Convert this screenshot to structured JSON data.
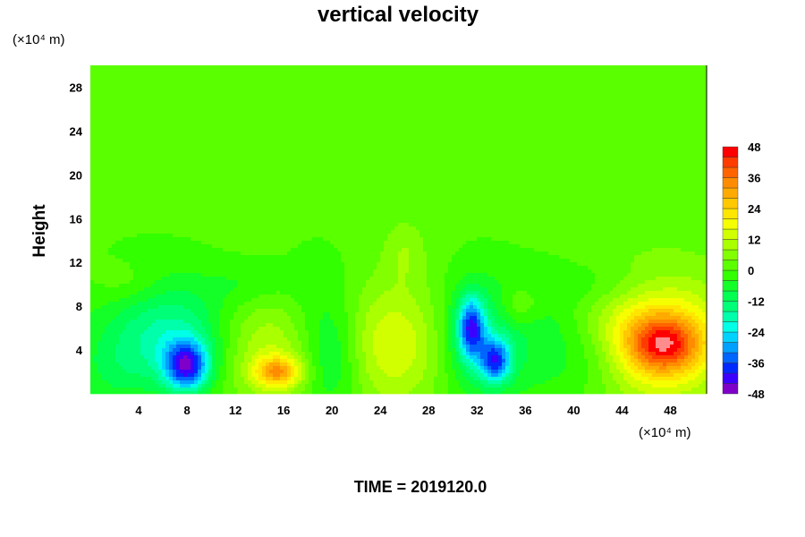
{
  "chart_data": {
    "type": "heatmap",
    "title": "vertical velocity",
    "ylabel": "Height",
    "xlabel": "",
    "x_unit": "(×10⁴ m)",
    "y_unit": "(×10⁴ m)",
    "footer": "TIME = 2019120.0",
    "xlim": [
      0,
      51
    ],
    "ylim": [
      0,
      30
    ],
    "x_ticks": [
      4,
      8,
      12,
      16,
      20,
      24,
      28,
      32,
      36,
      40,
      44,
      48
    ],
    "y_ticks": [
      4,
      8,
      12,
      16,
      20,
      24,
      28
    ],
    "x_tick_labels": [
      "4",
      "8",
      "12",
      "16",
      "20",
      "24",
      "28",
      "32",
      "36",
      "40",
      "44",
      "48"
    ],
    "y_tick_labels": [
      "4",
      "8",
      "12",
      "16",
      "20",
      "24",
      "28"
    ],
    "colorbar": {
      "min": -48,
      "max": 48,
      "step": 4,
      "ticks": [
        48,
        36,
        24,
        12,
        0,
        -12,
        -24,
        -36,
        -48
      ],
      "tick_labels": [
        "48",
        "36",
        "24",
        "12",
        "0",
        "-12",
        "-24",
        "-36",
        "-48"
      ],
      "colors": [
        "#7f00c8",
        "#3c00ff",
        "#0028ff",
        "#0064ff",
        "#00a0ff",
        "#00d2ff",
        "#00ffe6",
        "#00ffaa",
        "#00ff78",
        "#00ff50",
        "#14ff28",
        "#32ff00",
        "#5aff00",
        "#82ff00",
        "#aaff00",
        "#d2ff00",
        "#f5ff00",
        "#ffe600",
        "#ffc800",
        "#ffaa00",
        "#ff8c00",
        "#ff6400",
        "#ff3c00",
        "#ff0000",
        "#ff8c8c"
      ]
    },
    "background_value": 1,
    "field": [
      {
        "x": 8,
        "y": 2.5,
        "amplitude": -36,
        "sx": 1.3,
        "sy": 1.6
      },
      {
        "x": 7.5,
        "y": 5,
        "amplitude": -10,
        "sx": 3,
        "sy": 3
      },
      {
        "x": 5,
        "y": 6,
        "amplitude": -10,
        "sx": 4,
        "sy": 4
      },
      {
        "x": 2,
        "y": 2,
        "amplitude": -6,
        "sx": 2.5,
        "sy": 2.5
      },
      {
        "x": 15.5,
        "y": 2,
        "amplitude": 24,
        "sx": 1.4,
        "sy": 1.0
      },
      {
        "x": 15,
        "y": 4,
        "amplitude": 12,
        "sx": 3.2,
        "sy": 3.5
      },
      {
        "x": 20,
        "y": 3,
        "amplitude": -12,
        "sx": 1.8,
        "sy": 3.5
      },
      {
        "x": 19,
        "y": 7,
        "amplitude": -6,
        "sx": 2.5,
        "sy": 4
      },
      {
        "x": 25,
        "y": 4.5,
        "amplitude": 15,
        "sx": 3.5,
        "sy": 4
      },
      {
        "x": 31.5,
        "y": 6,
        "amplitude": -32,
        "sx": 0.8,
        "sy": 2
      },
      {
        "x": 33.5,
        "y": 3,
        "amplitude": -30,
        "sx": 0.9,
        "sy": 1.4
      },
      {
        "x": 32,
        "y": 5,
        "amplitude": -14,
        "sx": 2.5,
        "sy": 4
      },
      {
        "x": 38,
        "y": 5,
        "amplitude": -8,
        "sx": 3,
        "sy": 4
      },
      {
        "x": 35.5,
        "y": 8,
        "amplitude": 8,
        "sx": 1.2,
        "sy": 1.3
      },
      {
        "x": 42,
        "y": 3,
        "amplitude": -6,
        "sx": 2.5,
        "sy": 2.5
      },
      {
        "x": 47.5,
        "y": 4.5,
        "amplitude": 26,
        "sx": 2.1,
        "sy": 1.8
      },
      {
        "x": 46.5,
        "y": 5,
        "amplitude": 16,
        "sx": 4,
        "sy": 3.6
      },
      {
        "x": 47.5,
        "y": 5,
        "amplitude": 8,
        "sx": 5,
        "sy": 5
      },
      {
        "x": 26,
        "y": 13,
        "amplitude": 6,
        "sx": 1.2,
        "sy": 2
      },
      {
        "x": 13,
        "y": 10,
        "amplitude": -5,
        "sx": 2.5,
        "sy": 1.5
      },
      {
        "x": 43,
        "y": 10,
        "amplitude": -5,
        "sx": 3,
        "sy": 1.5
      },
      {
        "x": 3,
        "y": 10,
        "amplitude": 5,
        "sx": 2,
        "sy": 1.5
      }
    ]
  }
}
